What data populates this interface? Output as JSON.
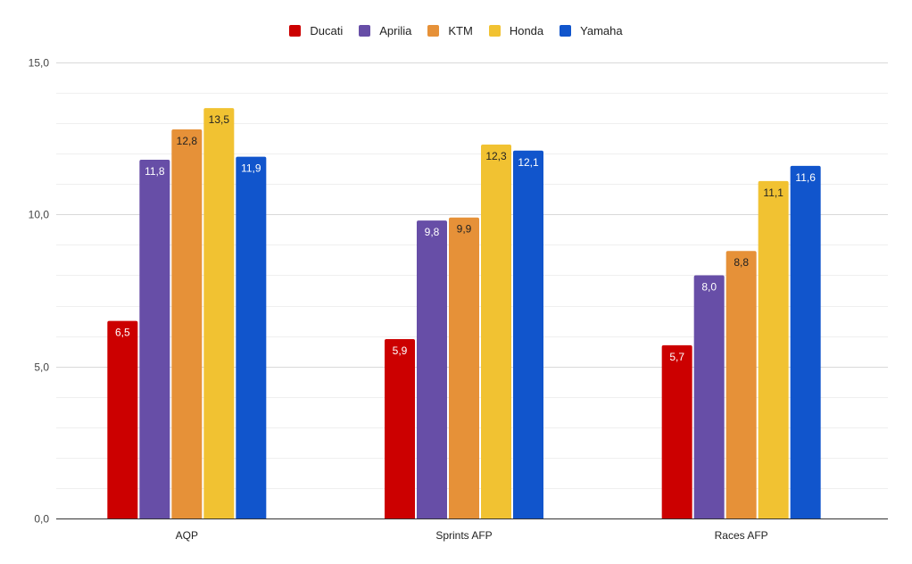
{
  "chart_data": {
    "type": "bar",
    "title": "",
    "xlabel": "",
    "ylabel": "",
    "categories": [
      "AQP",
      "Sprints AFP",
      "Races AFP"
    ],
    "series": [
      {
        "name": "Ducati",
        "color": "#cc0000",
        "values": [
          6.5,
          5.9,
          5.7
        ],
        "labels": [
          "6,5",
          "5,9",
          "5,7"
        ],
        "label_color": "#ffffff"
      },
      {
        "name": "Aprilia",
        "color": "#674ea7",
        "values": [
          11.8,
          9.8,
          8.0
        ],
        "labels": [
          "11,8",
          "9,8",
          "8,0"
        ],
        "label_color": "#ffffff"
      },
      {
        "name": "KTM",
        "color": "#e69138",
        "values": [
          12.8,
          9.9,
          8.8
        ],
        "labels": [
          "12,8",
          "9,9",
          "8,8"
        ],
        "label_color": "#222222"
      },
      {
        "name": "Honda",
        "color": "#f1c232",
        "values": [
          13.5,
          12.3,
          11.1
        ],
        "labels": [
          "13,5",
          "12,3",
          "11,1"
        ],
        "label_color": "#222222"
      },
      {
        "name": "Yamaha",
        "color": "#1155cc",
        "values": [
          11.9,
          12.1,
          11.6
        ],
        "labels": [
          "11,9",
          "12,1",
          "11,6"
        ],
        "label_color": "#ffffff"
      }
    ],
    "ylim": [
      0,
      15
    ],
    "yticks": [
      0,
      5,
      10,
      15
    ],
    "ytick_labels": [
      "0,0",
      "5,0",
      "10,0",
      "15,0"
    ],
    "minor_grid_step": 1,
    "grid": true,
    "legend_position": "top"
  }
}
